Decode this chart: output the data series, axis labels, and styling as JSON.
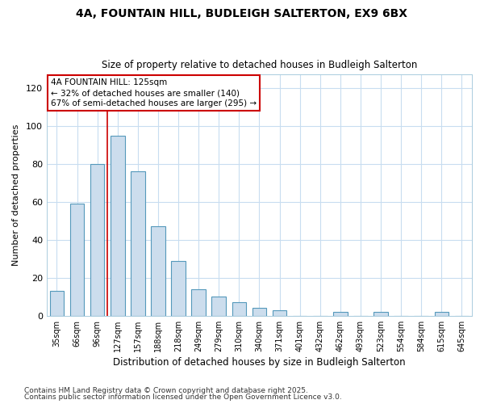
{
  "title1": "4A, FOUNTAIN HILL, BUDLEIGH SALTERTON, EX9 6BX",
  "title2": "Size of property relative to detached houses in Budleigh Salterton",
  "xlabel": "Distribution of detached houses by size in Budleigh Salterton",
  "ylabel": "Number of detached properties",
  "categories": [
    "35sqm",
    "66sqm",
    "96sqm",
    "127sqm",
    "157sqm",
    "188sqm",
    "218sqm",
    "249sqm",
    "279sqm",
    "310sqm",
    "340sqm",
    "371sqm",
    "401sqm",
    "432sqm",
    "462sqm",
    "493sqm",
    "523sqm",
    "554sqm",
    "584sqm",
    "615sqm",
    "645sqm"
  ],
  "values": [
    13,
    59,
    80,
    95,
    76,
    47,
    29,
    14,
    10,
    7,
    4,
    3,
    0,
    0,
    2,
    0,
    2,
    0,
    0,
    2,
    0
  ],
  "bar_color": "#ccdded",
  "bar_edge_color": "#5599bb",
  "grid_color": "#c8ddf0",
  "bg_color": "#ffffff",
  "vline_x": 3,
  "vline_color": "#cc0000",
  "annotation_title": "4A FOUNTAIN HILL: 125sqm",
  "annotation_line1": "← 32% of detached houses are smaller (140)",
  "annotation_line2": "67% of semi-detached houses are larger (295) →",
  "annotation_box_color": "#cc0000",
  "ylim": [
    0,
    127
  ],
  "yticks": [
    0,
    20,
    40,
    60,
    80,
    100,
    120
  ],
  "footnote1": "Contains HM Land Registry data © Crown copyright and database right 2025.",
  "footnote2": "Contains public sector information licensed under the Open Government Licence v3.0."
}
